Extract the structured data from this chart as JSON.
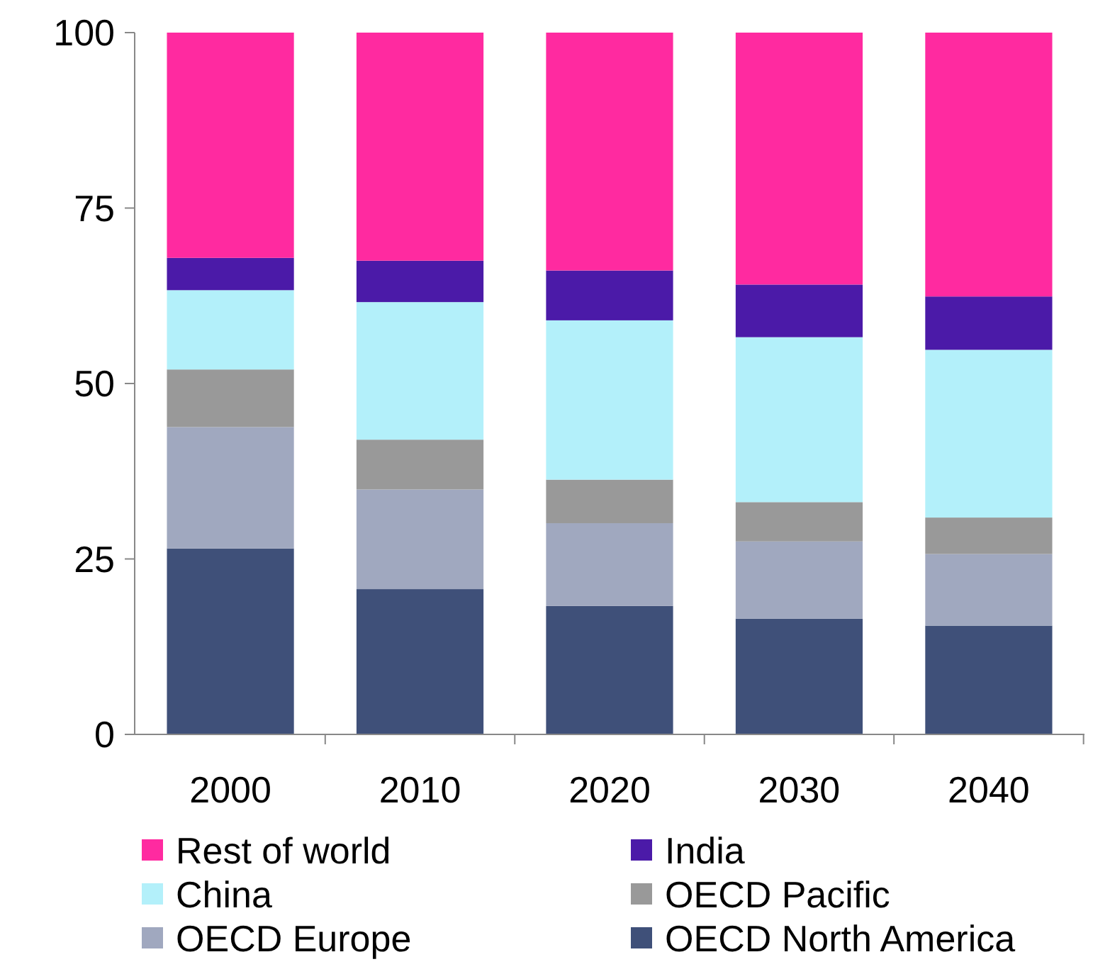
{
  "chart_data": {
    "type": "bar",
    "stacked": true,
    "categories": [
      "2000",
      "2010",
      "2020",
      "2030",
      "2040"
    ],
    "series": [
      {
        "name": "OECD North America",
        "color": "#3f5079",
        "values": [
          26.5,
          20.7,
          18.3,
          16.5,
          15.5
        ]
      },
      {
        "name": "OECD Europe",
        "color": "#a0a8bf",
        "values": [
          17.3,
          14.2,
          11.8,
          11.0,
          10.2
        ]
      },
      {
        "name": "OECD Pacific",
        "color": "#999999",
        "values": [
          8.2,
          7.1,
          6.2,
          5.6,
          5.2
        ]
      },
      {
        "name": "China",
        "color": "#b3f0fa",
        "values": [
          11.3,
          19.6,
          22.7,
          23.5,
          23.9
        ]
      },
      {
        "name": "India",
        "color": "#4b1aa8",
        "values": [
          4.6,
          5.9,
          7.1,
          7.5,
          7.6
        ]
      },
      {
        "name": "Rest of world",
        "color": "#ff2aa0",
        "values": [
          32.1,
          32.5,
          33.9,
          35.9,
          37.6
        ]
      }
    ],
    "ylim": [
      0,
      100
    ],
    "yticks": [
      0,
      25,
      50,
      75,
      100
    ],
    "grid": false,
    "legend": "bottom"
  }
}
